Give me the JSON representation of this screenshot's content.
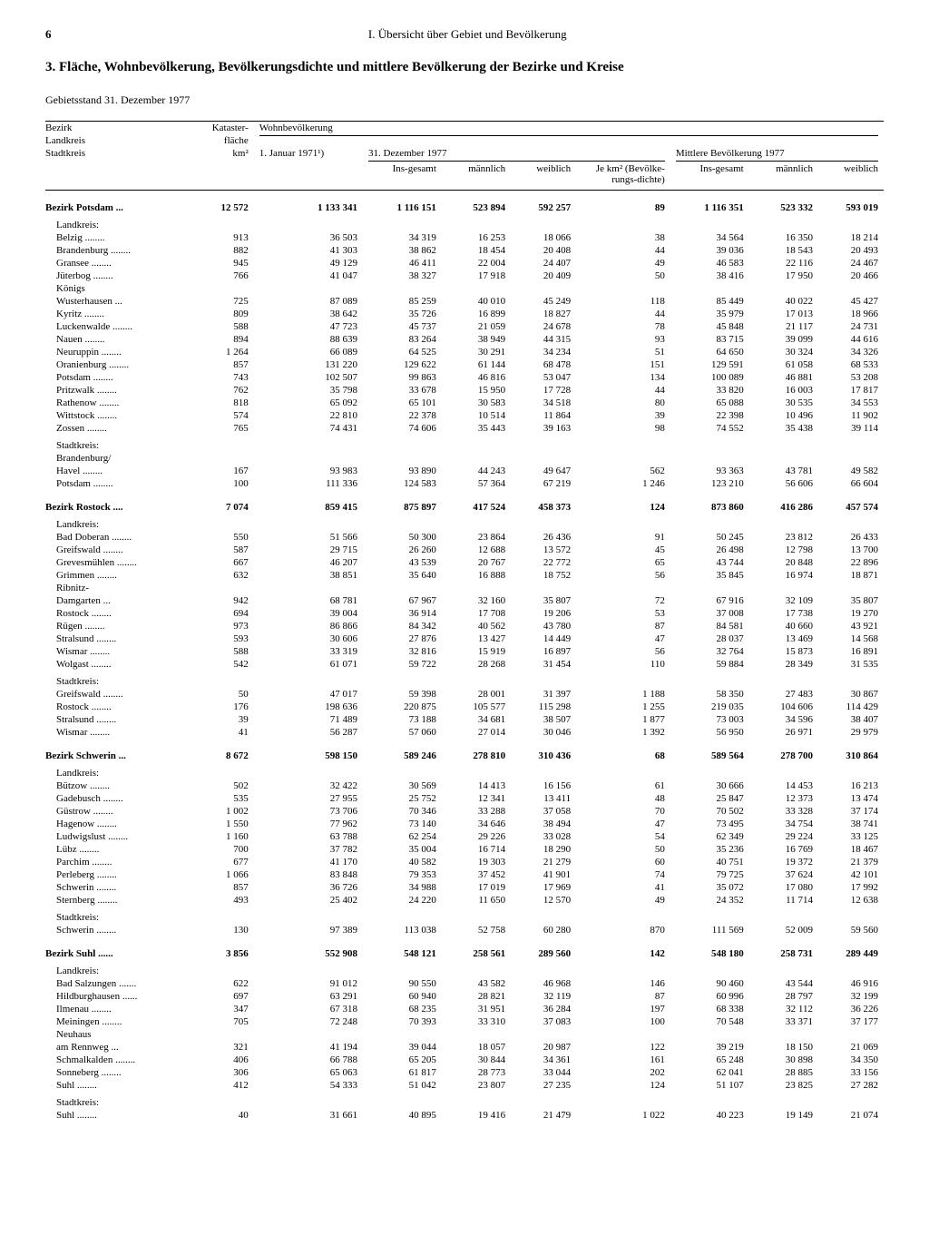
{
  "page_number": "6",
  "running_head": "I. Übersicht über Gebiet und Bevölkerung",
  "title": "3. Fläche, Wohnbevölkerung, Bevölkerungsdichte und mittlere Bevölkerung der Bezirke und Kreise",
  "subtitle": "Gebietsstand 31. Dezember 1977",
  "headers": {
    "col1_a": "Bezirk",
    "col1_b": "Landkreis",
    "col1_c": "Stadtkreis",
    "col2_a": "Kataster-",
    "col2_b": "fläche",
    "col2_c": "km²",
    "col_group": "Wohnbevölkerung",
    "col3": "1. Januar 1971¹)",
    "col_sub_group1": "31. Dezember 1977",
    "c4": "Ins-gesamt",
    "c5": "männlich",
    "c6": "weiblich",
    "c7": "Je km² (Bevölke-rungs-dichte)",
    "col_sub_group2": "Mittlere Bevölkerung 1977",
    "c8": "Ins-gesamt",
    "c9": "männlich",
    "c10": "weiblich"
  },
  "lk": "Landkreis:",
  "sk": "Stadtkreis:",
  "sections": [
    {
      "name": "Bezirk Potsdam",
      "dots": "...",
      "vals": [
        "12 572",
        "1 133 341",
        "1 116 151",
        "523 894",
        "592 257",
        "89",
        "1 116 351",
        "523 332",
        "593 019"
      ],
      "landkreis": [
        {
          "n": "Belzig",
          "v": [
            "913",
            "36 503",
            "34 319",
            "16 253",
            "18 066",
            "38",
            "34 564",
            "16 350",
            "18 214"
          ]
        },
        {
          "n": "Brandenburg",
          "v": [
            "882",
            "41 303",
            "38 862",
            "18 454",
            "20 408",
            "44",
            "39 036",
            "18 543",
            "20 493"
          ]
        },
        {
          "n": "Gransee",
          "v": [
            "945",
            "49 129",
            "46 411",
            "22 004",
            "24 407",
            "49",
            "46 583",
            "22 116",
            "24 467"
          ]
        },
        {
          "n": "Jüterbog",
          "v": [
            "766",
            "41 047",
            "38 327",
            "17 918",
            "20 409",
            "50",
            "38 416",
            "17 950",
            "20 466"
          ]
        },
        {
          "n": "Königs",
          "nowrap": true,
          "v": [
            "",
            "",
            "",
            "",
            "",
            "",
            "",
            "",
            ""
          ]
        },
        {
          "n": "Wusterhausen",
          "cont": true,
          "v": [
            "725",
            "87 089",
            "85 259",
            "40 010",
            "45 249",
            "118",
            "85 449",
            "40 022",
            "45 427"
          ]
        },
        {
          "n": "Kyritz",
          "v": [
            "809",
            "38 642",
            "35 726",
            "16 899",
            "18 827",
            "44",
            "35 979",
            "17 013",
            "18 966"
          ]
        },
        {
          "n": "Luckenwalde",
          "v": [
            "588",
            "47 723",
            "45 737",
            "21 059",
            "24 678",
            "78",
            "45 848",
            "21 117",
            "24 731"
          ]
        },
        {
          "n": "Nauen",
          "v": [
            "894",
            "88 639",
            "83 264",
            "38 949",
            "44 315",
            "93",
            "83 715",
            "39 099",
            "44 616"
          ]
        },
        {
          "n": "Neuruppin",
          "v": [
            "1 264",
            "66 089",
            "64 525",
            "30 291",
            "34 234",
            "51",
            "64 650",
            "30 324",
            "34 326"
          ]
        },
        {
          "n": "Oranienburg",
          "v": [
            "857",
            "131 220",
            "129 622",
            "61 144",
            "68 478",
            "151",
            "129 591",
            "61 058",
            "68 533"
          ]
        },
        {
          "n": "Potsdam",
          "v": [
            "743",
            "102 507",
            "99 863",
            "46 816",
            "53 047",
            "134",
            "100 089",
            "46 881",
            "53 208"
          ]
        },
        {
          "n": "Pritzwalk",
          "v": [
            "762",
            "35 798",
            "33 678",
            "15 950",
            "17 728",
            "44",
            "33 820",
            "16 003",
            "17 817"
          ]
        },
        {
          "n": "Rathenow",
          "v": [
            "818",
            "65 092",
            "65 101",
            "30 583",
            "34 518",
            "80",
            "65 088",
            "30 535",
            "34 553"
          ]
        },
        {
          "n": "Wittstock",
          "v": [
            "574",
            "22 810",
            "22 378",
            "10 514",
            "11 864",
            "39",
            "22 398",
            "10 496",
            "11 902"
          ]
        },
        {
          "n": "Zossen",
          "v": [
            "765",
            "74 431",
            "74 606",
            "35 443",
            "39 163",
            "98",
            "74 552",
            "35 438",
            "39 114"
          ]
        }
      ],
      "stadtkreis": [
        {
          "n": "Brandenburg/",
          "nowrap": true,
          "v": [
            "",
            "",
            "",
            "",
            "",
            "",
            "",
            "",
            ""
          ]
        },
        {
          "n": "Havel",
          "cont": true,
          "v": [
            "167",
            "93 983",
            "93 890",
            "44 243",
            "49 647",
            "562",
            "93 363",
            "43 781",
            "49 582"
          ]
        },
        {
          "n": "Potsdam",
          "v": [
            "100",
            "111 336",
            "124 583",
            "57 364",
            "67 219",
            "1 246",
            "123 210",
            "56 606",
            "66 604"
          ]
        }
      ]
    },
    {
      "name": "Bezirk Rostock",
      "dots": "....",
      "vals": [
        "7 074",
        "859 415",
        "875 897",
        "417 524",
        "458 373",
        "124",
        "873 860",
        "416 286",
        "457 574"
      ],
      "landkreis": [
        {
          "n": "Bad Doberan",
          "v": [
            "550",
            "51 566",
            "50 300",
            "23 864",
            "26 436",
            "91",
            "50 245",
            "23 812",
            "26 433"
          ]
        },
        {
          "n": "Greifswald",
          "v": [
            "587",
            "29 715",
            "26 260",
            "12 688",
            "13 572",
            "45",
            "26 498",
            "12 798",
            "13 700"
          ]
        },
        {
          "n": "Grevesmühlen",
          "v": [
            "667",
            "46 207",
            "43 539",
            "20 767",
            "22 772",
            "65",
            "43 744",
            "20 848",
            "22 896"
          ]
        },
        {
          "n": "Grimmen",
          "v": [
            "632",
            "38 851",
            "35 640",
            "16 888",
            "18 752",
            "56",
            "35 845",
            "16 974",
            "18 871"
          ]
        },
        {
          "n": "Ribnitz-",
          "nowrap": true,
          "v": [
            "",
            "",
            "",
            "",
            "",
            "",
            "",
            "",
            ""
          ]
        },
        {
          "n": "Damgarten",
          "cont": true,
          "v": [
            "942",
            "68 781",
            "67 967",
            "32 160",
            "35 807",
            "72",
            "67 916",
            "32 109",
            "35 807"
          ]
        },
        {
          "n": "Rostock",
          "v": [
            "694",
            "39 004",
            "36 914",
            "17 708",
            "19 206",
            "53",
            "37 008",
            "17 738",
            "19 270"
          ]
        },
        {
          "n": "Rügen",
          "v": [
            "973",
            "86 866",
            "84 342",
            "40 562",
            "43 780",
            "87",
            "84 581",
            "40 660",
            "43 921"
          ]
        },
        {
          "n": "Stralsund",
          "v": [
            "593",
            "30 606",
            "27 876",
            "13 427",
            "14 449",
            "47",
            "28 037",
            "13 469",
            "14 568"
          ]
        },
        {
          "n": "Wismar",
          "v": [
            "588",
            "33 319",
            "32 816",
            "15 919",
            "16 897",
            "56",
            "32 764",
            "15 873",
            "16 891"
          ]
        },
        {
          "n": "Wolgast",
          "v": [
            "542",
            "61 071",
            "59 722",
            "28 268",
            "31 454",
            "110",
            "59 884",
            "28 349",
            "31 535"
          ]
        }
      ],
      "stadtkreis": [
        {
          "n": "Greifswald",
          "v": [
            "50",
            "47 017",
            "59 398",
            "28 001",
            "31 397",
            "1 188",
            "58 350",
            "27 483",
            "30 867"
          ]
        },
        {
          "n": "Rostock",
          "v": [
            "176",
            "198 636",
            "220 875",
            "105 577",
            "115 298",
            "1 255",
            "219 035",
            "104 606",
            "114 429"
          ]
        },
        {
          "n": "Stralsund",
          "v": [
            "39",
            "71 489",
            "73 188",
            "34 681",
            "38 507",
            "1 877",
            "73 003",
            "34 596",
            "38 407"
          ]
        },
        {
          "n": "Wismar",
          "v": [
            "41",
            "56 287",
            "57 060",
            "27 014",
            "30 046",
            "1 392",
            "56 950",
            "26 971",
            "29 979"
          ]
        }
      ]
    },
    {
      "name": "Bezirk Schwerin",
      "dots": "...",
      "vals": [
        "8 672",
        "598 150",
        "589 246",
        "278 810",
        "310 436",
        "68",
        "589 564",
        "278 700",
        "310 864"
      ],
      "landkreis": [
        {
          "n": "Bützow",
          "v": [
            "502",
            "32 422",
            "30 569",
            "14 413",
            "16 156",
            "61",
            "30 666",
            "14 453",
            "16 213"
          ]
        },
        {
          "n": "Gadebusch",
          "v": [
            "535",
            "27 955",
            "25 752",
            "12 341",
            "13 411",
            "48",
            "25 847",
            "12 373",
            "13 474"
          ]
        },
        {
          "n": "Güstrow",
          "v": [
            "1 002",
            "73 706",
            "70 346",
            "33 288",
            "37 058",
            "70",
            "70 502",
            "33 328",
            "37 174"
          ]
        },
        {
          "n": "Hagenow",
          "v": [
            "1 550",
            "77 962",
            "73 140",
            "34 646",
            "38 494",
            "47",
            "73 495",
            "34 754",
            "38 741"
          ]
        },
        {
          "n": "Ludwigslust",
          "v": [
            "1 160",
            "63 788",
            "62 254",
            "29 226",
            "33 028",
            "54",
            "62 349",
            "29 224",
            "33 125"
          ]
        },
        {
          "n": "Lübz",
          "v": [
            "700",
            "37 782",
            "35 004",
            "16 714",
            "18 290",
            "50",
            "35 236",
            "16 769",
            "18 467"
          ]
        },
        {
          "n": "Parchim",
          "v": [
            "677",
            "41 170",
            "40 582",
            "19 303",
            "21 279",
            "60",
            "40 751",
            "19 372",
            "21 379"
          ]
        },
        {
          "n": "Perleberg",
          "v": [
            "1 066",
            "83 848",
            "79 353",
            "37 452",
            "41 901",
            "74",
            "79 725",
            "37 624",
            "42 101"
          ]
        },
        {
          "n": "Schwerin",
          "v": [
            "857",
            "36 726",
            "34 988",
            "17 019",
            "17 969",
            "41",
            "35 072",
            "17 080",
            "17 992"
          ]
        },
        {
          "n": "Sternberg",
          "v": [
            "493",
            "25 402",
            "24 220",
            "11 650",
            "12 570",
            "49",
            "24 352",
            "11 714",
            "12 638"
          ]
        }
      ],
      "stadtkreis": [
        {
          "n": "Schwerin",
          "v": [
            "130",
            "97 389",
            "113 038",
            "52 758",
            "60 280",
            "870",
            "111 569",
            "52 009",
            "59 560"
          ]
        }
      ]
    },
    {
      "name": "Bezirk Suhl",
      "dots": "......",
      "vals": [
        "3 856",
        "552 908",
        "548 121",
        "258 561",
        "289 560",
        "142",
        "548 180",
        "258 731",
        "289 449"
      ],
      "landkreis": [
        {
          "n": "Bad Salzungen",
          "v": [
            "622",
            "91 012",
            "90 550",
            "43 582",
            "46 968",
            "146",
            "90 460",
            "43 544",
            "46 916"
          ]
        },
        {
          "n": "Hildburghausen",
          "v": [
            "697",
            "63 291",
            "60 940",
            "28 821",
            "32 119",
            "87",
            "60 996",
            "28 797",
            "32 199"
          ]
        },
        {
          "n": "Ilmenau",
          "v": [
            "347",
            "67 318",
            "68 235",
            "31 951",
            "36 284",
            "197",
            "68 338",
            "32 112",
            "36 226"
          ]
        },
        {
          "n": "Meiningen",
          "v": [
            "705",
            "72 248",
            "70 393",
            "33 310",
            "37 083",
            "100",
            "70 548",
            "33 371",
            "37 177"
          ]
        },
        {
          "n": "Neuhaus",
          "nowrap": true,
          "v": [
            "",
            "",
            "",
            "",
            "",
            "",
            "",
            "",
            ""
          ]
        },
        {
          "n": "am Rennweg",
          "cont": true,
          "v": [
            "321",
            "41 194",
            "39 044",
            "18 057",
            "20 987",
            "122",
            "39 219",
            "18 150",
            "21 069"
          ]
        },
        {
          "n": "Schmalkalden",
          "v": [
            "406",
            "66 788",
            "65 205",
            "30 844",
            "34 361",
            "161",
            "65 248",
            "30 898",
            "34 350"
          ]
        },
        {
          "n": "Sonneberg",
          "v": [
            "306",
            "65 063",
            "61 817",
            "28 773",
            "33 044",
            "202",
            "62 041",
            "28 885",
            "33 156"
          ]
        },
        {
          "n": "Suhl",
          "v": [
            "412",
            "54 333",
            "51 042",
            "23 807",
            "27 235",
            "124",
            "51 107",
            "23 825",
            "27 282"
          ]
        }
      ],
      "stadtkreis": [
        {
          "n": "Suhl",
          "v": [
            "40",
            "31 661",
            "40 895",
            "19 416",
            "21 479",
            "1 022",
            "40 223",
            "19 149",
            "21 074"
          ]
        }
      ]
    }
  ]
}
